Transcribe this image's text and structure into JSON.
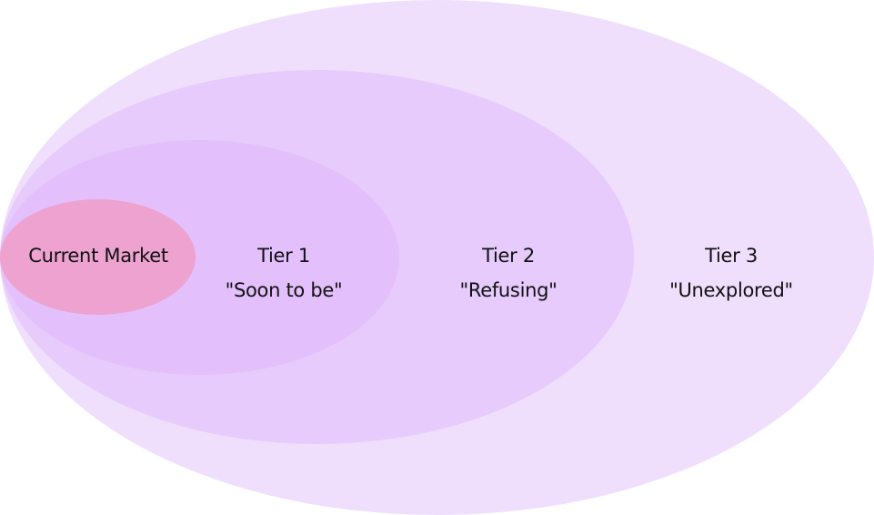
{
  "diagram": {
    "tiers": {
      "current": {
        "label": "Current Market",
        "color": "#eda2cf"
      },
      "tier1": {
        "title": "Tier 1",
        "subtitle": "\"Soon to be\"",
        "color": "#e3c0fc"
      },
      "tier2": {
        "title": "Tier 2",
        "subtitle": "\"Refusing\"",
        "color": "#e6cbfc"
      },
      "tier3": {
        "title": "Tier 3",
        "subtitle": "\"Unexplored\"",
        "color": "#efdffd"
      }
    }
  }
}
